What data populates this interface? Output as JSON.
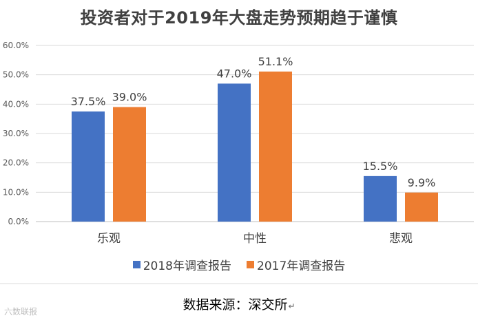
{
  "chart_data": {
    "type": "bar",
    "title": "投资者对于2019年大盘走势预期趋于谨慎",
    "categories": [
      "乐观",
      "中性",
      "悲观"
    ],
    "series": [
      {
        "name": "2018年调查报告",
        "color": "#4472C4",
        "values": [
          37.5,
          47.0,
          15.5
        ],
        "labels": [
          "37.5%",
          "47.0%",
          "15.5%"
        ]
      },
      {
        "name": "2017年调查报告",
        "color": "#ED7D31",
        "values": [
          39.0,
          51.1,
          9.9
        ],
        "labels": [
          "39.0%",
          "51.1%",
          "9.9%"
        ]
      }
    ],
    "yticks": [
      "0.0%",
      "10.0%",
      "20.0%",
      "30.0%",
      "40.0%",
      "50.0%",
      "60.0%"
    ],
    "ylim": [
      0,
      60
    ],
    "grid": true,
    "legend_position": "bottom"
  },
  "source_note": "数据来源：深交所",
  "return_mark": "↵",
  "watermark": "六数联报"
}
